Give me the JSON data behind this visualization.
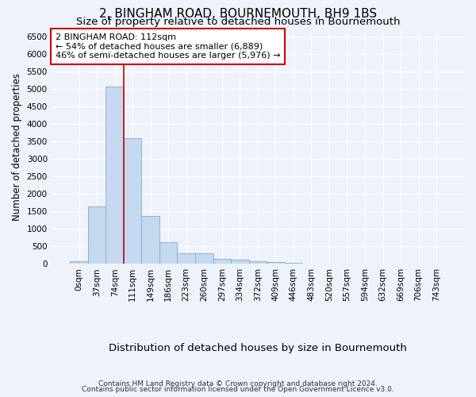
{
  "title": "2, BINGHAM ROAD, BOURNEMOUTH, BH9 1BS",
  "subtitle": "Size of property relative to detached houses in Bournemouth",
  "xlabel": "Distribution of detached houses by size in Bournemouth",
  "ylabel": "Number of detached properties",
  "footer_line1": "Contains HM Land Registry data © Crown copyright and database right 2024.",
  "footer_line2": "Contains public sector information licensed under the Open Government Licence v3.0.",
  "bar_labels": [
    "0sqm",
    "37sqm",
    "74sqm",
    "111sqm",
    "149sqm",
    "186sqm",
    "223sqm",
    "260sqm",
    "297sqm",
    "334sqm",
    "372sqm",
    "409sqm",
    "446sqm",
    "483sqm",
    "520sqm",
    "557sqm",
    "594sqm",
    "632sqm",
    "669sqm",
    "706sqm",
    "743sqm"
  ],
  "bar_values": [
    70,
    1650,
    5080,
    3600,
    1380,
    610,
    300,
    300,
    150,
    110,
    75,
    45,
    30,
    0,
    0,
    0,
    0,
    0,
    0,
    0,
    0
  ],
  "bar_color": "#c5d8f0",
  "bar_edge_color": "#7aafd4",
  "ylim": [
    0,
    6700
  ],
  "yticks": [
    0,
    500,
    1000,
    1500,
    2000,
    2500,
    3000,
    3500,
    4000,
    4500,
    5000,
    5500,
    6000,
    6500
  ],
  "property_line_index": 3,
  "annotation_line1": "2 BINGHAM ROAD: 112sqm",
  "annotation_line2": "← 54% of detached houses are smaller (6,889)",
  "annotation_line3": "46% of semi-detached houses are larger (5,976) →",
  "annotation_box_color": "#ffffff",
  "annotation_box_edgecolor": "#cc0000",
  "property_line_color": "#cc0000",
  "background_color": "#eef2f9",
  "grid_color": "#ffffff",
  "title_fontsize": 11,
  "subtitle_fontsize": 9.5,
  "ylabel_fontsize": 8.5,
  "xlabel_fontsize": 9.5,
  "tick_fontsize": 7.5,
  "annotation_fontsize": 8,
  "footer_fontsize": 6.5
}
